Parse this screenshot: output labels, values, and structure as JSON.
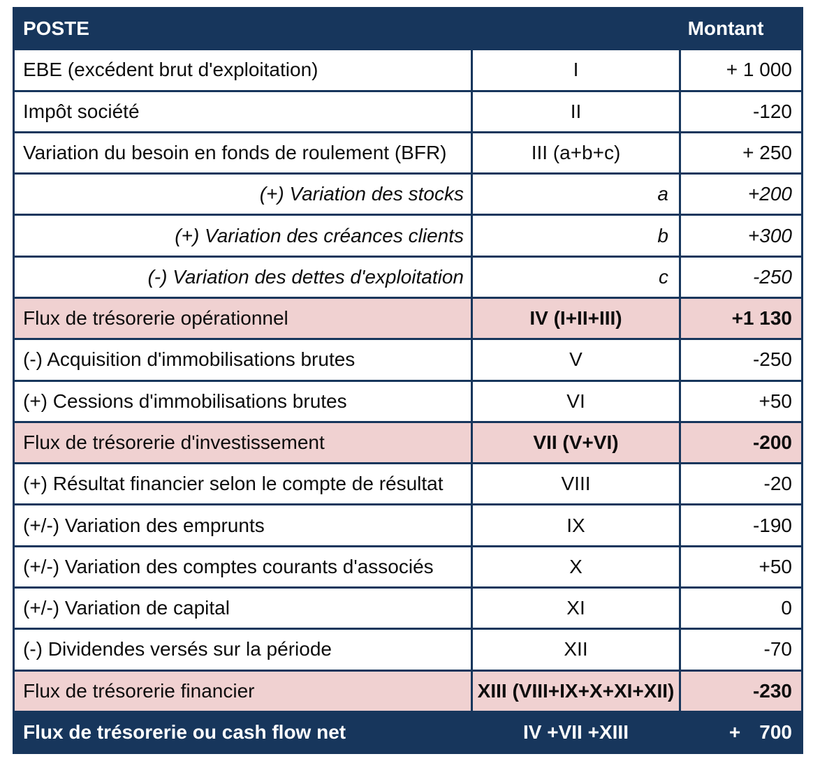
{
  "table": {
    "header": {
      "poste": "POSTE",
      "montant": "Montant"
    },
    "rows": [
      {
        "label": "EBE (excédent brut d'exploitation)",
        "code": "I",
        "amount": "+ 1 000",
        "style": "normal"
      },
      {
        "label": "Impôt société",
        "code": "II",
        "amount": "-120",
        "style": "normal"
      },
      {
        "label": "Variation du besoin en fonds de roulement (BFR)",
        "code": "III (a+b+c)",
        "amount": "+ 250",
        "style": "normal"
      },
      {
        "label": "(+) Variation des stocks",
        "code": "a",
        "amount": "+200",
        "style": "sub"
      },
      {
        "label": "(+) Variation des créances clients",
        "code": "b",
        "amount": "+300",
        "style": "sub"
      },
      {
        "label": "(-) Variation des dettes d'exploitation",
        "code": "c",
        "amount": "-250",
        "style": "sub"
      },
      {
        "label": "Flux de trésorerie opérationnel",
        "code": "IV (I+II+III)",
        "amount": "+1 130",
        "style": "subtotal"
      },
      {
        "label": "(-) Acquisition d'immobilisations brutes",
        "code": "V",
        "amount": "-250",
        "style": "normal"
      },
      {
        "label": "(+) Cessions d'immobilisations brutes",
        "code": "VI",
        "amount": "+50",
        "style": "normal"
      },
      {
        "label": "Flux de trésorerie d'investissement",
        "code": "VII (V+VI)",
        "amount": "-200",
        "style": "subtotal"
      },
      {
        "label": "(+) Résultat financier selon le compte de résultat",
        "code": "VIII",
        "amount": "-20",
        "style": "normal"
      },
      {
        "label": "(+/-) Variation des emprunts",
        "code": "IX",
        "amount": "-190",
        "style": "normal"
      },
      {
        "label": "(+/-) Variation des comptes courants d'associés",
        "code": "X",
        "amount": "+50",
        "style": "normal"
      },
      {
        "label": "(+/-) Variation de capital",
        "code": "XI",
        "amount": "0",
        "style": "normal"
      },
      {
        "label": "(-) Dividendes versés sur la période",
        "code": "XII",
        "amount": "-70",
        "style": "normal"
      },
      {
        "label": "Flux de trésorerie financier",
        "code": "XIII (VIII+IX+X+XI+XII)",
        "amount": "-230",
        "style": "subtotal"
      }
    ],
    "footer": {
      "label": "Flux de trésorerie ou cash flow net",
      "code": "IV +VII +XIII",
      "amount_sign": "+",
      "amount_value": "700"
    }
  },
  "colors": {
    "navy": "#17365c",
    "pink": "#f0d1d1",
    "text": "#0d0d0d",
    "white": "#ffffff"
  }
}
